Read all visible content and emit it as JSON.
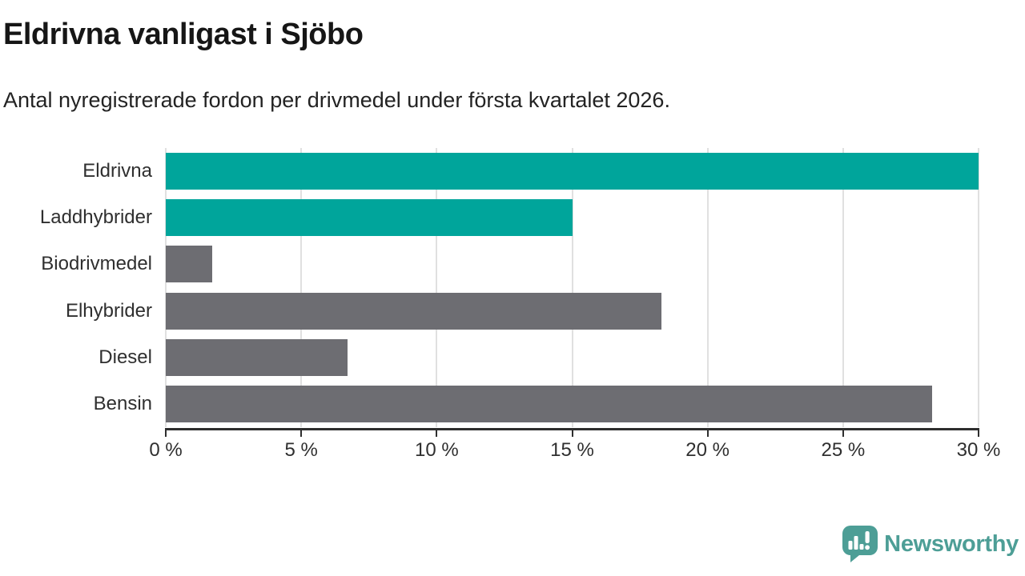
{
  "header": {
    "title": "Eldrivna vanligast i Sjöbo",
    "subtitle": "Antal nyregistrerade fordon per drivmedel under första kvartalet 2026."
  },
  "chart_data": {
    "type": "bar",
    "orientation": "horizontal",
    "title": "Eldrivna vanligast i Sjöbo",
    "subtitle": "Antal nyregistrerade fordon per drivmedel under första kvartalet 2026.",
    "categories": [
      "Eldrivna",
      "Laddhybrider",
      "Biodrivmedel",
      "Elhybrider",
      "Diesel",
      "Bensin"
    ],
    "values": [
      30,
      15,
      1.7,
      18.3,
      6.7,
      28.3
    ],
    "unit": "%",
    "bar_colors": [
      "#00a59b",
      "#00a59b",
      "#6d6d72",
      "#6d6d72",
      "#6d6d72",
      "#6d6d72"
    ],
    "xlim": [
      0,
      30
    ],
    "x_ticks": [
      0,
      5,
      10,
      15,
      20,
      25,
      30
    ],
    "x_tick_labels": [
      "0 %",
      "5 %",
      "10 %",
      "15 %",
      "20 %",
      "25 %",
      "30 %"
    ],
    "grid": true,
    "legend": false,
    "xlabel": "",
    "ylabel": ""
  },
  "footer": {
    "brand": "Newsworthy"
  },
  "colors": {
    "highlight_bar": "#00a59b",
    "default_bar": "#6d6d72",
    "grid_line": "#e0e0e0",
    "axis_line": "#2e2e2e",
    "title_text": "#161616",
    "body_text": "#2f2f2f",
    "brand_teal": "#4d9e96",
    "background": "#ffffff"
  }
}
